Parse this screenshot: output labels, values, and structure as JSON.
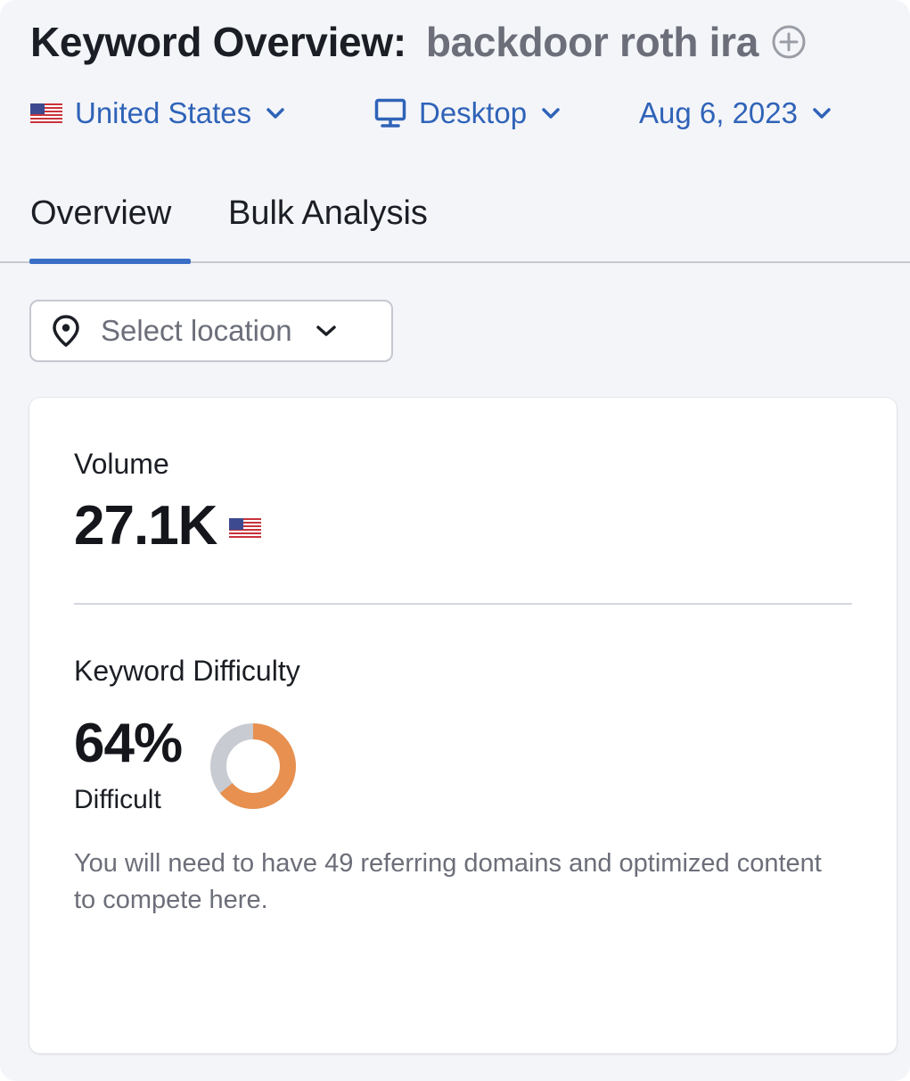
{
  "header": {
    "title_prefix": "Keyword Overview:",
    "keyword": "backdoor roth ira",
    "add_icon": "plus-circle-icon"
  },
  "filters": {
    "country": {
      "label": "United States",
      "icon": "us-flag-icon"
    },
    "device": {
      "label": "Desktop",
      "icon": "desktop-monitor-icon"
    },
    "date": {
      "label": "Aug 6, 2023"
    }
  },
  "tabs": [
    {
      "label": "Overview",
      "active": true
    },
    {
      "label": "Bulk Analysis",
      "active": false
    }
  ],
  "location_select": {
    "placeholder": "Select location",
    "icon": "location-pin-icon"
  },
  "volume": {
    "label": "Volume",
    "value": "27.1K"
  },
  "keyword_difficulty": {
    "label": "Keyword Difficulty",
    "value": "64%",
    "percent": 64,
    "level": "Difficult",
    "description": "You will need to have 49 referring domains and optimized content to compete here."
  },
  "colors": {
    "accent_blue": "#2f63b8",
    "tab_underline": "#3b6fc7",
    "difficulty_fill": "#e8904f",
    "difficulty_track": "#c8cbd1"
  }
}
